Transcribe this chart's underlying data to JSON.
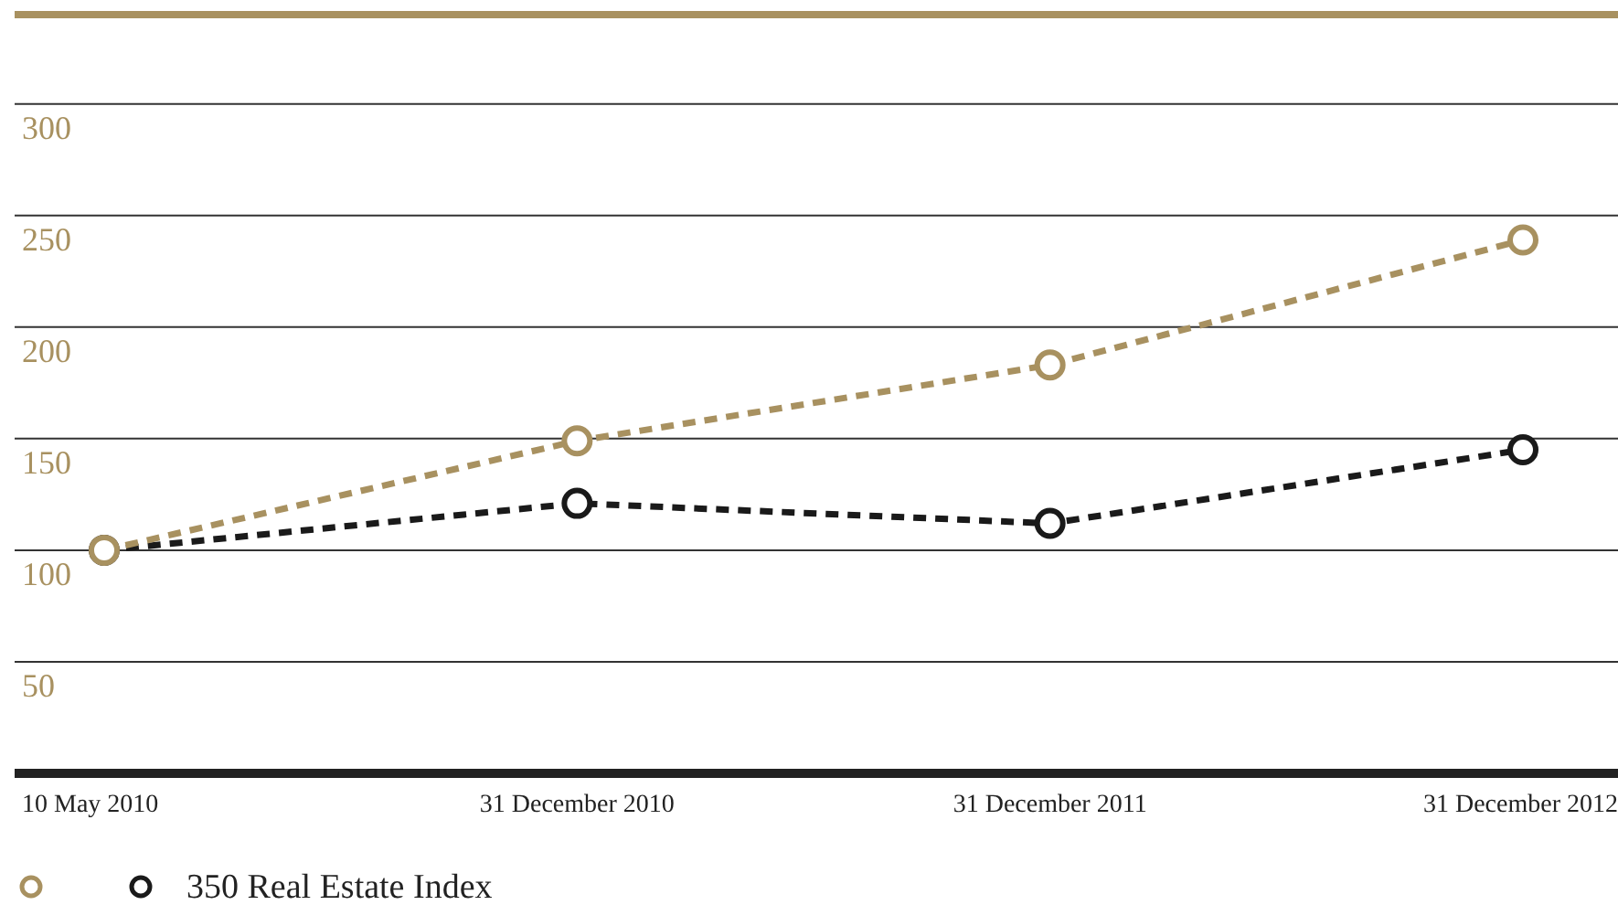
{
  "chart_data": {
    "type": "line",
    "categories": [
      "10 May 2010",
      "31 December 2010",
      "31 December 2011",
      "31 December 2012"
    ],
    "series": [
      {
        "color": "#a89160",
        "values": [
          100,
          149,
          183,
          239
        ]
      },
      {
        "name": "350 Real Estate Index",
        "color": "#1a1a1a",
        "values": [
          100,
          121,
          112,
          145
        ]
      }
    ],
    "ylim": [
      0,
      340
    ],
    "yticks": [
      50,
      100,
      150,
      200,
      250,
      300
    ],
    "grid": "y",
    "legend": "bottom left",
    "marker": "circle",
    "line_style": "dashed"
  }
}
